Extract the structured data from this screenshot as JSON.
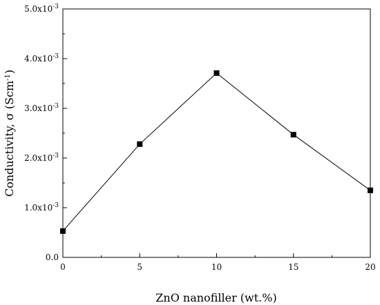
{
  "chart_data": {
    "type": "line",
    "xlabel": "ZnO nanofiller (wt.%)",
    "ylabel": "Conductivity, σ (Scm",
    "ylabel_sup": "-1",
    "ylabel_close": ")",
    "x": [
      0,
      5,
      10,
      15,
      20
    ],
    "series": [
      {
        "values": [
          0.00053,
          0.00228,
          0.00371,
          0.00247,
          0.00135
        ]
      }
    ],
    "xlim": [
      0,
      20
    ],
    "ylim": [
      0,
      0.005
    ],
    "x_ticks": [
      0,
      5,
      10,
      15,
      20
    ],
    "x_tick_labels": [
      "0",
      "5",
      "10",
      "15",
      "20"
    ],
    "y_ticks": [
      0,
      0.001,
      0.002,
      0.003,
      0.004,
      0.005
    ],
    "y_tick_labels": [
      {
        "base": "0.0",
        "exp": ""
      },
      {
        "base": "1.0x10",
        "exp": "-3"
      },
      {
        "base": "2.0x10",
        "exp": "-3"
      },
      {
        "base": "3.0x10",
        "exp": "-3"
      },
      {
        "base": "4.0x10",
        "exp": "-3"
      },
      {
        "base": "5.0x10",
        "exp": "-3"
      }
    ],
    "marker": "square",
    "grid": false,
    "line_color": "#000000",
    "marker_color": "#000000"
  }
}
